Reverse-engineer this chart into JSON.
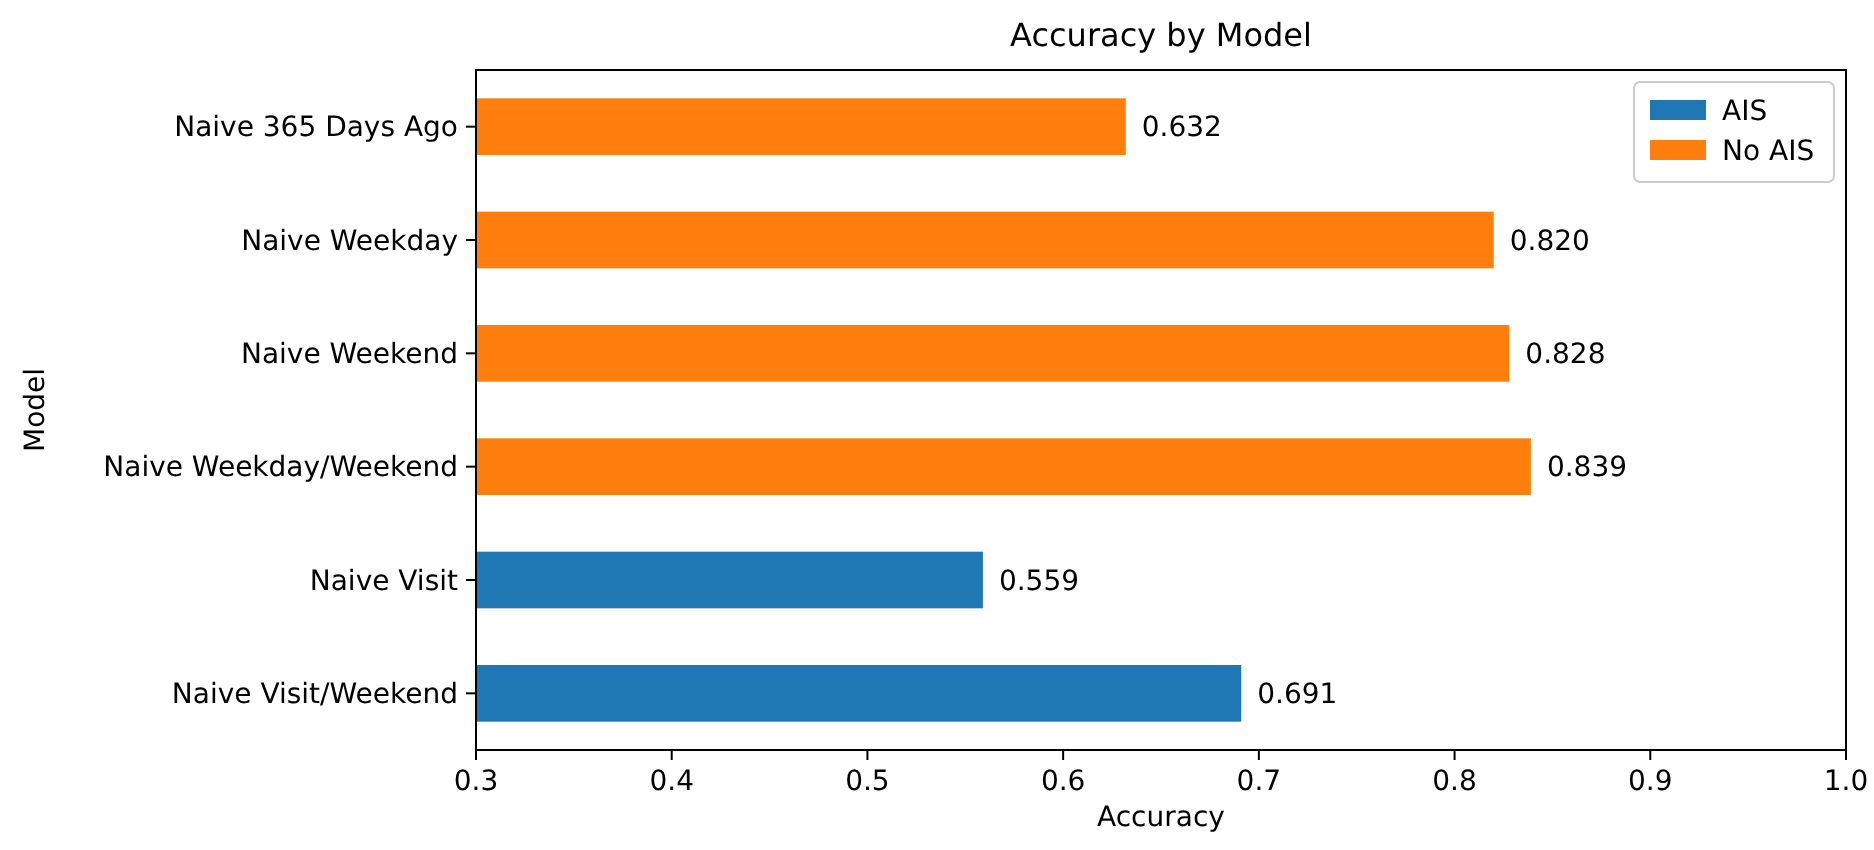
{
  "chart_data": {
    "type": "bar",
    "orientation": "horizontal",
    "title": "Accuracy by Model",
    "xlabel": "Accuracy",
    "ylabel": "Model",
    "categories": [
      "Naive 365 Days Ago",
      "Naive Weekday",
      "Naive Weekend",
      "Naive Weekday/Weekend",
      "Naive Visit",
      "Naive Visit/Weekend"
    ],
    "series": [
      {
        "name": "AIS",
        "color": "#1f77b4",
        "values": [
          null,
          null,
          null,
          null,
          0.559,
          0.691
        ],
        "value_labels": [
          null,
          null,
          null,
          null,
          "0.559",
          "0.691"
        ]
      },
      {
        "name": "No AIS",
        "color": "#ff7f0e",
        "values": [
          0.632,
          0.82,
          0.828,
          0.839,
          null,
          null
        ],
        "value_labels": [
          "0.632",
          "0.820",
          "0.828",
          "0.839",
          null,
          null
        ]
      }
    ],
    "xlim": [
      0.3,
      1.0
    ],
    "xticks": [
      {
        "value": 0.3,
        "label": "0.3"
      },
      {
        "value": 0.4,
        "label": "0.4"
      },
      {
        "value": 0.5,
        "label": "0.5"
      },
      {
        "value": 0.6,
        "label": "0.6"
      },
      {
        "value": 0.7,
        "label": "0.7"
      },
      {
        "value": 0.8,
        "label": "0.8"
      },
      {
        "value": 0.9,
        "label": "0.9"
      },
      {
        "value": 1.0,
        "label": "1.0"
      }
    ],
    "legend": "top right",
    "grid": false
  }
}
